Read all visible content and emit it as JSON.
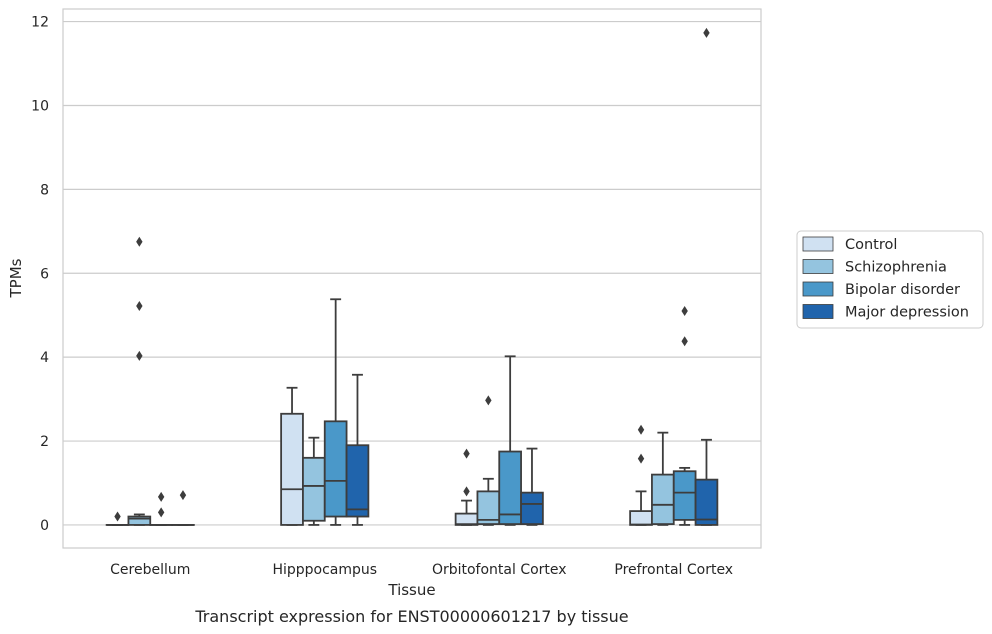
{
  "chart_data": {
    "type": "box",
    "title": "",
    "caption": "Transcript expression for ENST00000601217 by tissue",
    "xlabel": "Tissue",
    "ylabel": "TPMs",
    "ylim": [
      -0.55,
      12.3
    ],
    "yticks": [
      0,
      2,
      4,
      6,
      8,
      10,
      12
    ],
    "grid": "horizontal",
    "legend_placement": "right",
    "categories": [
      "Cerebellum",
      "Hipppocampus",
      "Orbitofontal Cortex",
      "Prefrontal Cortex"
    ],
    "series": [
      {
        "name": "Control",
        "color": "#d0e1f2",
        "boxes": [
          {
            "min": 0,
            "q1": 0,
            "median": 0,
            "q3": 0,
            "max": 0,
            "outliers": [
              0.2
            ]
          },
          {
            "min": 0,
            "q1": 0,
            "median": 0.85,
            "q3": 2.65,
            "max": 3.27,
            "outliers": []
          },
          {
            "min": 0,
            "q1": 0,
            "median": 0.02,
            "q3": 0.27,
            "max": 0.58,
            "outliers": [
              0.8,
              1.7
            ]
          },
          {
            "min": 0,
            "q1": 0,
            "median": 0.01,
            "q3": 0.33,
            "max": 0.8,
            "outliers": [
              1.58,
              2.27
            ]
          }
        ]
      },
      {
        "name": "Schizophrenia",
        "color": "#94c4df",
        "boxes": [
          {
            "min": 0,
            "q1": 0,
            "median": 0.15,
            "q3": 0.2,
            "max": 0.25,
            "outliers": [
              4.03,
              5.22,
              6.75
            ]
          },
          {
            "min": 0,
            "q1": 0.1,
            "median": 0.93,
            "q3": 1.6,
            "max": 2.08,
            "outliers": []
          },
          {
            "min": 0,
            "q1": 0.02,
            "median": 0.12,
            "q3": 0.8,
            "max": 1.1,
            "outliers": [
              2.97
            ]
          },
          {
            "min": 0,
            "q1": 0.02,
            "median": 0.48,
            "q3": 1.2,
            "max": 2.2,
            "outliers": []
          }
        ]
      },
      {
        "name": "Bipolar disorder",
        "color": "#4a98c9",
        "boxes": [
          {
            "min": 0,
            "q1": 0,
            "median": 0,
            "q3": 0,
            "max": 0,
            "outliers": [
              0.3,
              0.67
            ]
          },
          {
            "min": 0,
            "q1": 0.2,
            "median": 1.05,
            "q3": 2.47,
            "max": 5.38,
            "outliers": []
          },
          {
            "min": 0,
            "q1": 0.02,
            "median": 0.25,
            "q3": 1.75,
            "max": 4.02,
            "outliers": []
          },
          {
            "min": 0,
            "q1": 0.12,
            "median": 0.77,
            "q3": 1.28,
            "max": 1.36,
            "outliers": [
              4.38,
              5.1
            ]
          }
        ]
      },
      {
        "name": "Major depression",
        "color": "#2064ac",
        "boxes": [
          {
            "min": 0,
            "q1": 0,
            "median": 0,
            "q3": 0,
            "max": 0,
            "outliers": [
              0.71
            ]
          },
          {
            "min": 0,
            "q1": 0.2,
            "median": 0.37,
            "q3": 1.9,
            "max": 3.58,
            "outliers": []
          },
          {
            "min": 0,
            "q1": 0.02,
            "median": 0.5,
            "q3": 0.77,
            "max": 1.82,
            "outliers": []
          },
          {
            "min": 0,
            "q1": 0,
            "median": 0.13,
            "q3": 1.08,
            "max": 2.03,
            "outliers": [
              11.73
            ]
          }
        ]
      }
    ]
  },
  "colors": {
    "grid": "#cccccc",
    "frame": "#cccccc",
    "box_edge": "#3d3d3d"
  }
}
